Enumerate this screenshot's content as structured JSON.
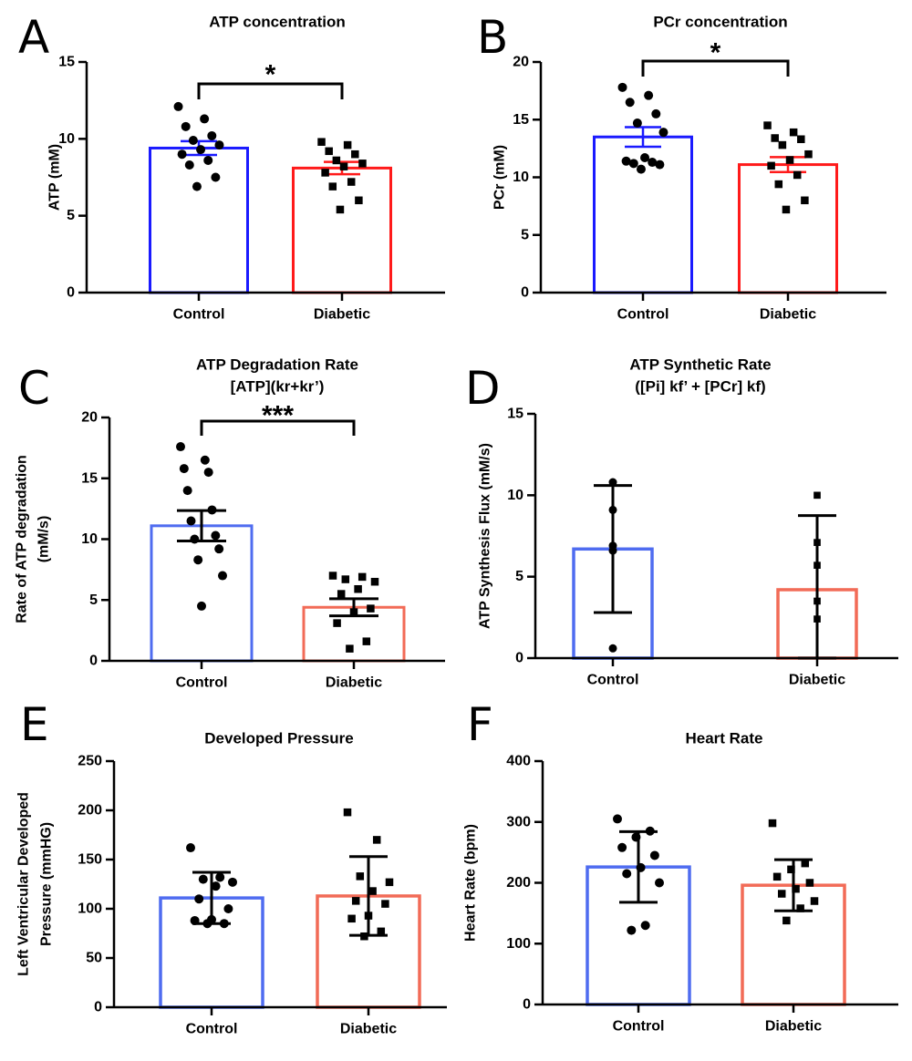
{
  "chart_data": [
    {
      "type": "bar",
      "panel_label": "A",
      "title_lines": [
        "ATP concentration"
      ],
      "ylabel_lines": [
        "ATP (mM)"
      ],
      "categories": [
        "Control",
        "Diabetic"
      ],
      "values": [
        9.4,
        8.1
      ],
      "sem": [
        0.45,
        0.4
      ],
      "yticks": [
        0,
        5,
        10,
        15
      ],
      "ylim": [
        0,
        15
      ],
      "bar_colors": [
        "#1a1aff",
        "#ff1a1a"
      ],
      "error_color": "#1a1aff_#ff1a1a",
      "significance": "*",
      "points": [
        {
          "marker": "circle",
          "values": [
            12.1,
            11.3,
            10.8,
            10.2,
            9.9,
            9.6,
            9.3,
            9.0,
            8.6,
            8.3,
            7.5,
            6.9
          ]
        },
        {
          "marker": "square",
          "values": [
            9.8,
            9.6,
            9.2,
            9.0,
            8.6,
            8.4,
            8.2,
            7.8,
            7.2,
            6.9,
            6.0,
            5.4
          ]
        }
      ]
    },
    {
      "type": "bar",
      "panel_label": "B",
      "title_lines": [
        "PCr concentration"
      ],
      "ylabel_lines": [
        "PCr (mM)"
      ],
      "categories": [
        "Control",
        "Diabetic"
      ],
      "values": [
        13.5,
        11.1
      ],
      "sem": [
        0.85,
        0.65
      ],
      "yticks": [
        0,
        5,
        10,
        15,
        20
      ],
      "ylim": [
        0,
        20
      ],
      "bar_colors": [
        "#1a1aff",
        "#ff1a1a"
      ],
      "error_color": "#1a1aff_#ff1a1a",
      "significance": "*",
      "points": [
        {
          "marker": "circle",
          "values": [
            17.8,
            17.1,
            16.5,
            15.5,
            14.7,
            13.9,
            11.7,
            11.4,
            11.3,
            11.2,
            11.1,
            10.7
          ]
        },
        {
          "marker": "square",
          "values": [
            14.5,
            13.9,
            13.4,
            13.3,
            12.8,
            12.0,
            11.5,
            11.0,
            10.2,
            9.4,
            8.0,
            7.2
          ]
        }
      ]
    },
    {
      "type": "bar",
      "panel_label": "C",
      "title_lines": [
        "ATP Degradation Rate",
        "[ATP](kr+kr’)"
      ],
      "ylabel_lines": [
        "Rate of ATP degradation",
        "(mM/s)"
      ],
      "categories": [
        "Control",
        "Diabetic"
      ],
      "values": [
        11.1,
        4.4
      ],
      "sem": [
        1.25,
        0.7
      ],
      "yticks": [
        0,
        5,
        10,
        15,
        20
      ],
      "ylim": [
        0,
        20
      ],
      "bar_colors": [
        "#4f6cf0",
        "#f26b57"
      ],
      "error_color": "#000000",
      "significance": "***",
      "points": [
        {
          "marker": "circle",
          "values": [
            17.6,
            16.5,
            15.8,
            15.5,
            14.0,
            12.4,
            11.5,
            10.3,
            10.0,
            9.2,
            8.3,
            7.0,
            4.5
          ]
        },
        {
          "marker": "square",
          "values": [
            7.0,
            6.9,
            6.7,
            6.5,
            5.9,
            5.5,
            4.3,
            4.0,
            3.1,
            1.6,
            1.0
          ]
        }
      ]
    },
    {
      "type": "bar",
      "panel_label": "D",
      "title_lines": [
        "ATP Synthetic Rate",
        "([Pi] kf’ + [PCr] kf)"
      ],
      "ylabel_lines": [
        "ATP Synthesis Flux (mM/s)"
      ],
      "categories": [
        "Control",
        "Diabetic"
      ],
      "values": [
        6.7,
        4.2
      ],
      "sd": [
        3.9,
        4.55
      ],
      "yticks": [
        0,
        5,
        10,
        15
      ],
      "ylim": [
        0,
        15
      ],
      "bar_colors": [
        "#4f6cf0",
        "#f26b57"
      ],
      "error_color": "#000000",
      "significance": "",
      "points": [
        {
          "marker": "circle",
          "values": [
            10.8,
            9.1,
            6.9,
            6.6,
            0.6
          ]
        },
        {
          "marker": "square",
          "values": [
            10.0,
            7.1,
            5.7,
            3.5,
            2.4
          ]
        }
      ]
    },
    {
      "type": "bar",
      "panel_label": "E",
      "title_lines": [
        "Developed Pressure"
      ],
      "ylabel_lines": [
        "Left Ventricular Developed",
        "Pressure (mmHG)"
      ],
      "categories": [
        "Control",
        "Diabetic"
      ],
      "values": [
        111,
        113
      ],
      "sd": [
        26,
        40
      ],
      "yticks": [
        0,
        50,
        100,
        150,
        200,
        250
      ],
      "ylim": [
        0,
        250
      ],
      "bar_colors": [
        "#4f6cf0",
        "#f26b57"
      ],
      "error_color": "#000000",
      "significance": "",
      "points": [
        {
          "marker": "circle",
          "values": [
            162,
            132,
            130,
            127,
            123,
            110,
            100,
            89,
            88,
            85,
            85
          ]
        },
        {
          "marker": "square",
          "values": [
            198,
            170,
            133,
            127,
            118,
            108,
            105,
            93,
            90,
            77,
            72
          ]
        }
      ]
    },
    {
      "type": "bar",
      "panel_label": "F",
      "title_lines": [
        "Heart Rate"
      ],
      "ylabel_lines": [
        "Heart Rate (bpm)"
      ],
      "categories": [
        "Control",
        "Diabetic"
      ],
      "values": [
        226,
        196
      ],
      "sd": [
        58,
        42
      ],
      "yticks": [
        0,
        100,
        200,
        300,
        400
      ],
      "ylim": [
        0,
        400
      ],
      "bar_colors": [
        "#4f6cf0",
        "#f26b57"
      ],
      "error_color": "#000000",
      "significance": "",
      "points": [
        {
          "marker": "circle",
          "values": [
            305,
            285,
            275,
            258,
            245,
            225,
            215,
            200,
            130,
            122
          ]
        },
        {
          "marker": "square",
          "values": [
            298,
            232,
            222,
            210,
            200,
            190,
            182,
            170,
            158,
            138
          ]
        }
      ]
    }
  ]
}
